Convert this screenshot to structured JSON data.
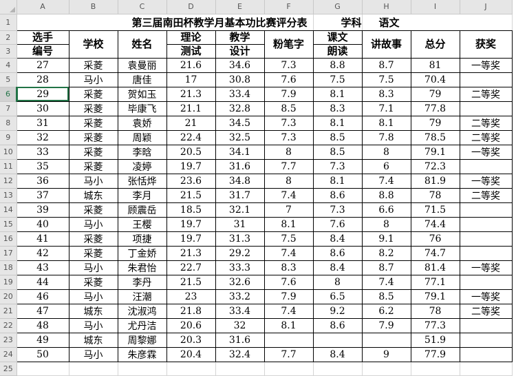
{
  "columns": [
    "A",
    "B",
    "C",
    "D",
    "E",
    "F",
    "G",
    "H",
    "I",
    "J"
  ],
  "title": {
    "main": "第三届南田杯教学月基本功比赛评分表",
    "subject_label": "学科",
    "subject_value": "语文"
  },
  "headers": {
    "number": [
      "选手",
      "编号"
    ],
    "school": "学校",
    "name": "姓名",
    "theory": [
      "理论",
      "测试"
    ],
    "design": [
      "教学",
      "设计"
    ],
    "chalk": "粉笔字",
    "reading": [
      "课文",
      "朗读"
    ],
    "story": "讲故事",
    "total": "总分",
    "award": "获奖"
  },
  "rows": [
    {
      "r": "4",
      "num": "27",
      "school": "采菱",
      "name": "袁曼丽",
      "theory": "21.6",
      "design": "34.6",
      "chalk": "7.3",
      "reading": "8.8",
      "story": "8.7",
      "total": "81",
      "award": "一等奖"
    },
    {
      "r": "5",
      "num": "28",
      "school": "马小",
      "name": "唐佳",
      "theory": "17",
      "design": "30.8",
      "chalk": "7.6",
      "reading": "7.5",
      "story": "7.5",
      "total": "70.4",
      "award": ""
    },
    {
      "r": "6",
      "num": "29",
      "school": "采菱",
      "name": "贺如玉",
      "theory": "21.3",
      "design": "33.4",
      "chalk": "7.9",
      "reading": "8.1",
      "story": "8.3",
      "total": "79",
      "award": "二等奖"
    },
    {
      "r": "7",
      "num": "30",
      "school": "采菱",
      "name": "毕康飞",
      "theory": "21.1",
      "design": "32.8",
      "chalk": "8.5",
      "reading": "8.3",
      "story": "7.1",
      "total": "77.8",
      "award": ""
    },
    {
      "r": "8",
      "num": "31",
      "school": "采菱",
      "name": "袁娇",
      "theory": "21",
      "design": "34.5",
      "chalk": "7.3",
      "reading": "8.1",
      "story": "8.1",
      "total": "79",
      "award": "二等奖"
    },
    {
      "r": "9",
      "num": "32",
      "school": "采菱",
      "name": "周颖",
      "theory": "22.4",
      "design": "32.5",
      "chalk": "7.3",
      "reading": "8.5",
      "story": "7.8",
      "total": "78.5",
      "award": "二等奖"
    },
    {
      "r": "10",
      "num": "33",
      "school": "采菱",
      "name": "李晗",
      "theory": "20.5",
      "design": "34.1",
      "chalk": "8",
      "reading": "8.5",
      "story": "8",
      "total": "79.1",
      "award": "一等奖"
    },
    {
      "r": "11",
      "num": "35",
      "school": "采菱",
      "name": "凌婷",
      "theory": "19.7",
      "design": "31.6",
      "chalk": "7.7",
      "reading": "7.3",
      "story": "6",
      "total": "72.3",
      "award": ""
    },
    {
      "r": "12",
      "num": "36",
      "school": "马小",
      "name": "张恬烨",
      "theory": "23.6",
      "design": "34.8",
      "chalk": "8",
      "reading": "8.1",
      "story": "7.4",
      "total": "81.9",
      "award": "一等奖"
    },
    {
      "r": "13",
      "num": "37",
      "school": "城东",
      "name": "李月",
      "theory": "21.5",
      "design": "31.7",
      "chalk": "7.4",
      "reading": "8.6",
      "story": "8.8",
      "total": "78",
      "award": "二等奖"
    },
    {
      "r": "14",
      "num": "39",
      "school": "采菱",
      "name": "顾震岳",
      "theory": "18.5",
      "design": "32.1",
      "chalk": "7",
      "reading": "7.3",
      "story": "6.6",
      "total": "71.5",
      "award": ""
    },
    {
      "r": "15",
      "num": "40",
      "school": "马小",
      "name": "王樱",
      "theory": "19.7",
      "design": "31",
      "chalk": "8.1",
      "reading": "7.6",
      "story": "8",
      "total": "74.4",
      "award": ""
    },
    {
      "r": "16",
      "num": "41",
      "school": "采菱",
      "name": "项捷",
      "theory": "19.7",
      "design": "31.3",
      "chalk": "7.5",
      "reading": "8.4",
      "story": "9.1",
      "total": "76",
      "award": ""
    },
    {
      "r": "17",
      "num": "42",
      "school": "采菱",
      "name": "丁金娇",
      "theory": "21.3",
      "design": "29.2",
      "chalk": "7.4",
      "reading": "8.6",
      "story": "8.2",
      "total": "74.7",
      "award": ""
    },
    {
      "r": "18",
      "num": "43",
      "school": "马小",
      "name": "朱君怡",
      "theory": "22.7",
      "design": "33.3",
      "chalk": "8.3",
      "reading": "8.4",
      "story": "8.7",
      "total": "81.4",
      "award": "一等奖"
    },
    {
      "r": "19",
      "num": "44",
      "school": "采菱",
      "name": "李丹",
      "theory": "21.5",
      "design": "32.6",
      "chalk": "7.6",
      "reading": "8",
      "story": "7.4",
      "total": "77.1",
      "award": ""
    },
    {
      "r": "20",
      "num": "46",
      "school": "马小",
      "name": "汪潮",
      "theory": "23",
      "design": "33.2",
      "chalk": "7.9",
      "reading": "6.5",
      "story": "8.5",
      "total": "79.1",
      "award": "一等奖"
    },
    {
      "r": "21",
      "num": "47",
      "school": "城东",
      "name": "沈淑鸿",
      "theory": "21.8",
      "design": "33.4",
      "chalk": "7.4",
      "reading": "9.2",
      "story": "6.2",
      "total": "78",
      "award": "二等奖"
    },
    {
      "r": "22",
      "num": "48",
      "school": "马小",
      "name": "尤丹洁",
      "theory": "20.6",
      "design": "32",
      "chalk": "8.1",
      "reading": "8.6",
      "story": "7.9",
      "total": "77.3",
      "award": ""
    },
    {
      "r": "23",
      "num": "49",
      "school": "城东",
      "name": "周黎娜",
      "theory": "20.3",
      "design": "31.6",
      "chalk": "",
      "reading": "",
      "story": "",
      "total": "51.9",
      "award": ""
    },
    {
      "r": "24",
      "num": "50",
      "school": "马小",
      "name": "朱彦霖",
      "theory": "20.4",
      "design": "32.4",
      "chalk": "7.7",
      "reading": "8.4",
      "story": "9",
      "total": "77.9",
      "award": ""
    }
  ],
  "row_labels": [
    "1",
    "2",
    "3",
    "25"
  ]
}
